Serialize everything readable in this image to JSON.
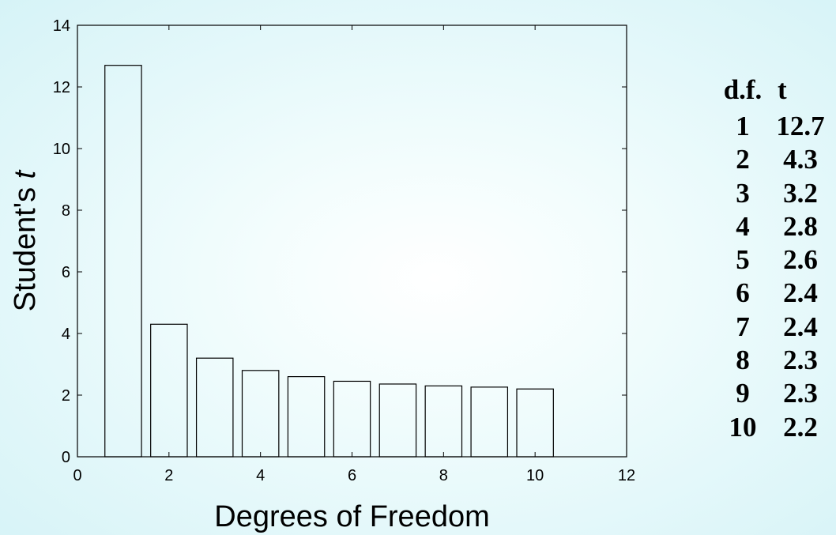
{
  "chart_data": {
    "type": "bar",
    "x": [
      1,
      2,
      3,
      4,
      5,
      6,
      7,
      8,
      9,
      10
    ],
    "values": [
      12.7,
      4.3,
      3.2,
      2.8,
      2.6,
      2.45,
      2.36,
      2.3,
      2.26,
      2.2
    ],
    "xlabel": "Degrees of Freedom",
    "ylabel_prefix": "Student's ",
    "ylabel_var": "t",
    "xlim": [
      0,
      12
    ],
    "ylim": [
      0,
      14
    ],
    "xticks": [
      "0",
      "2",
      "4",
      "6",
      "8",
      "10",
      "12"
    ],
    "yticks": [
      "0",
      "2",
      "4",
      "6",
      "8",
      "10",
      "12",
      "14"
    ],
    "grid": false
  },
  "table": {
    "headers": [
      "d.f.",
      "t"
    ],
    "rows": [
      {
        "df": "1",
        "t": "12.7"
      },
      {
        "df": "2",
        "t": "4.3"
      },
      {
        "df": "3",
        "t": "3.2"
      },
      {
        "df": "4",
        "t": "2.8"
      },
      {
        "df": "5",
        "t": "2.6"
      },
      {
        "df": "6",
        "t": "2.4"
      },
      {
        "df": "7",
        "t": "2.4"
      },
      {
        "df": "8",
        "t": "2.3"
      },
      {
        "df": "9",
        "t": "2.3"
      },
      {
        "df": "10",
        "t": "2.2"
      }
    ]
  }
}
